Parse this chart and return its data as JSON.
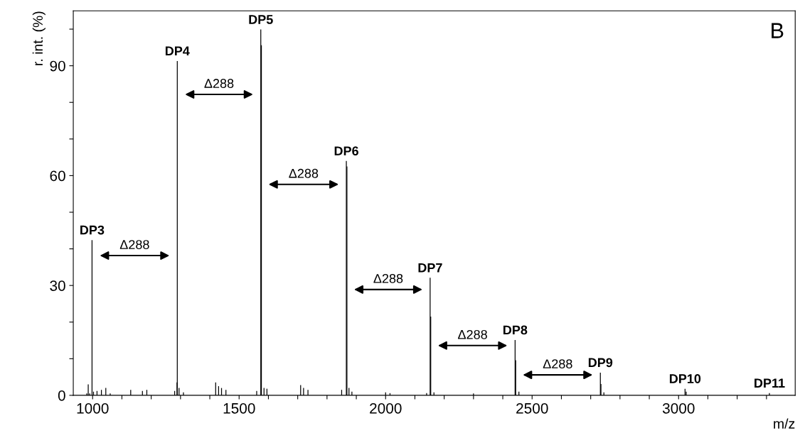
{
  "chart_data": {
    "type": "bar",
    "xlabel": "m/z",
    "ylabel": "r. int. (%)",
    "x": [
      980,
      985,
      990,
      998,
      1003,
      1015,
      1030,
      1045,
      1060,
      1130,
      1170,
      1185,
      1280,
      1288,
      1289,
      1295,
      1310,
      1420,
      1430,
      1440,
      1455,
      1560,
      1574,
      1576,
      1585,
      1595,
      1710,
      1720,
      1735,
      1850,
      1866,
      1868,
      1875,
      1885,
      2000,
      2015,
      2140,
      2152,
      2154,
      2165,
      2300,
      2442,
      2444,
      2455,
      2733,
      2735,
      2745,
      3022,
      3026,
      3310
    ],
    "values": [
      0.5,
      3.0,
      0.5,
      42.4,
      1.0,
      1.2,
      1.5,
      2.0,
      0.5,
      1.5,
      1.2,
      1.5,
      1.2,
      3.5,
      91.3,
      2.0,
      0.8,
      3.5,
      2.5,
      2.0,
      1.5,
      1.2,
      99.9,
      95.6,
      2.0,
      1.8,
      2.8,
      2.0,
      1.5,
      1.5,
      64,
      62.5,
      2.0,
      1.0,
      0.8,
      0.6,
      0.6,
      32.1,
      21.5,
      0.8,
      0.5,
      15.1,
      9.6,
      1.0,
      6.2,
      3.1,
      0.8,
      1.8,
      1.0,
      0.6
    ],
    "color": "#000000",
    "xlim": [
      934,
      3398
    ],
    "xticks": [
      1000,
      {
        "value": 1100,
        "label": null
      },
      {
        "value": 1200,
        "label": null
      },
      {
        "value": 1300,
        "label": null
      },
      {
        "value": 1400,
        "label": null
      },
      1500,
      {
        "value": 1600,
        "label": null
      },
      {
        "value": 1700,
        "label": null
      },
      {
        "value": 1800,
        "label": null
      },
      {
        "value": 1900,
        "label": null
      },
      2000,
      {
        "value": 2100,
        "label": null
      },
      {
        "value": 2200,
        "label": null
      },
      {
        "value": 2300,
        "label": null
      },
      {
        "value": 2400,
        "label": null
      },
      2500,
      {
        "value": 2600,
        "label": null
      },
      {
        "value": 2700,
        "label": null
      },
      {
        "value": 2800,
        "label": null
      },
      {
        "value": 2900,
        "label": null
      },
      3000,
      {
        "value": 3100,
        "label": null
      },
      {
        "value": 3200,
        "label": null
      },
      {
        "value": 3300,
        "label": null
      }
    ],
    "ylim": [
      0,
      105
    ],
    "yticks": [
      0,
      {
        "value": 10,
        "label": null
      },
      {
        "value": 20,
        "label": null
      },
      30,
      {
        "value": 40,
        "label": null
      },
      {
        "value": 50,
        "label": null
      },
      60,
      {
        "value": 70,
        "label": null
      },
      {
        "value": 80,
        "label": null
      },
      90,
      {
        "value": 100,
        "label": null
      }
    ],
    "grid": false,
    "legend": false,
    "annotations": [
      {
        "text": "DP3",
        "x": 998,
        "y": 42.4
      },
      {
        "text": "DP4",
        "x": 1289,
        "y": 91.3
      },
      {
        "text": "DP5",
        "x": 1574,
        "y": 99.9
      },
      {
        "text": "DP6",
        "x": 1866,
        "y": 64
      },
      {
        "text": "DP7",
        "x": 2152,
        "y": 32.1
      },
      {
        "text": "DP8",
        "x": 2442,
        "y": 15.1
      },
      {
        "text": "DP9",
        "x": 2733,
        "y": 6.2
      },
      {
        "text": "DP10",
        "x": 3022,
        "y": 1.8
      },
      {
        "text": "DP11",
        "x": 3310,
        "y": 0.6
      },
      "Δ288",
      "Δ288",
      "Δ288",
      "Δ288",
      "Δ288",
      "Δ288",
      "B"
    ]
  }
}
